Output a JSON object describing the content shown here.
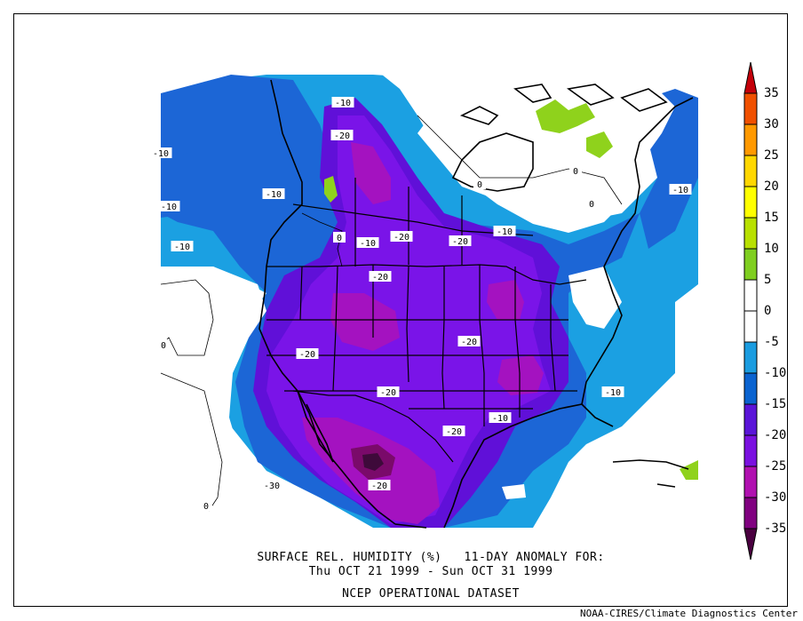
{
  "title": {
    "line1": "SURFACE REL. HUMIDITY (%)   11-DAY ANOMALY FOR:",
    "line2": "Thu OCT 21 1999 - Sun OCT 31 1999",
    "line3": "NCEP OPERATIONAL DATASET"
  },
  "credit": "NOAA-CIRES/Climate Diagnostics Center",
  "colorbar": {
    "labels": [
      "35",
      "30",
      "25",
      "20",
      "15",
      "10",
      "5",
      "0",
      "-5",
      "-10",
      "-15",
      "-20",
      "-25",
      "-30",
      "-35"
    ],
    "colors": [
      "#c4000a",
      "#f05000",
      "#ff9900",
      "#ffd700",
      "#ffff00",
      "#b8e000",
      "#7fce20",
      "#ffffff",
      "#ffffff",
      "#1a9ce0",
      "#0a63d0",
      "#5a14d8",
      "#7a10e0",
      "#b010b0",
      "#800080",
      "#4a0040"
    ]
  },
  "palette": {
    "neg5": "#1ba0e2",
    "neg10": "#1c66d6",
    "neg15": "#6010d8",
    "neg20": "#7a14e8",
    "neg25": "#a412c0",
    "neg30": "#7a0a6a",
    "neg35": "#3e0a3a",
    "pos5": "#8fd21c"
  },
  "contour_labels": [
    {
      "text": "-10"
    },
    {
      "text": "-20"
    },
    {
      "text": "-10"
    },
    {
      "text": "-10"
    },
    {
      "text": "-10"
    },
    {
      "text": "-20"
    },
    {
      "text": "-20"
    },
    {
      "text": "-10"
    },
    {
      "text": "-10"
    },
    {
      "text": "-10"
    },
    {
      "text": "-20"
    },
    {
      "text": "-20"
    },
    {
      "text": "-20"
    },
    {
      "text": "-20"
    },
    {
      "text": "-10"
    },
    {
      "text": "-20"
    },
    {
      "text": "-20"
    },
    {
      "text": "-30"
    },
    {
      "text": "-10"
    },
    {
      "text": "0"
    },
    {
      "text": "0"
    },
    {
      "text": "0"
    },
    {
      "text": "0"
    },
    {
      "text": "0"
    },
    {
      "text": "0"
    },
    {
      "text": "-10"
    }
  ]
}
